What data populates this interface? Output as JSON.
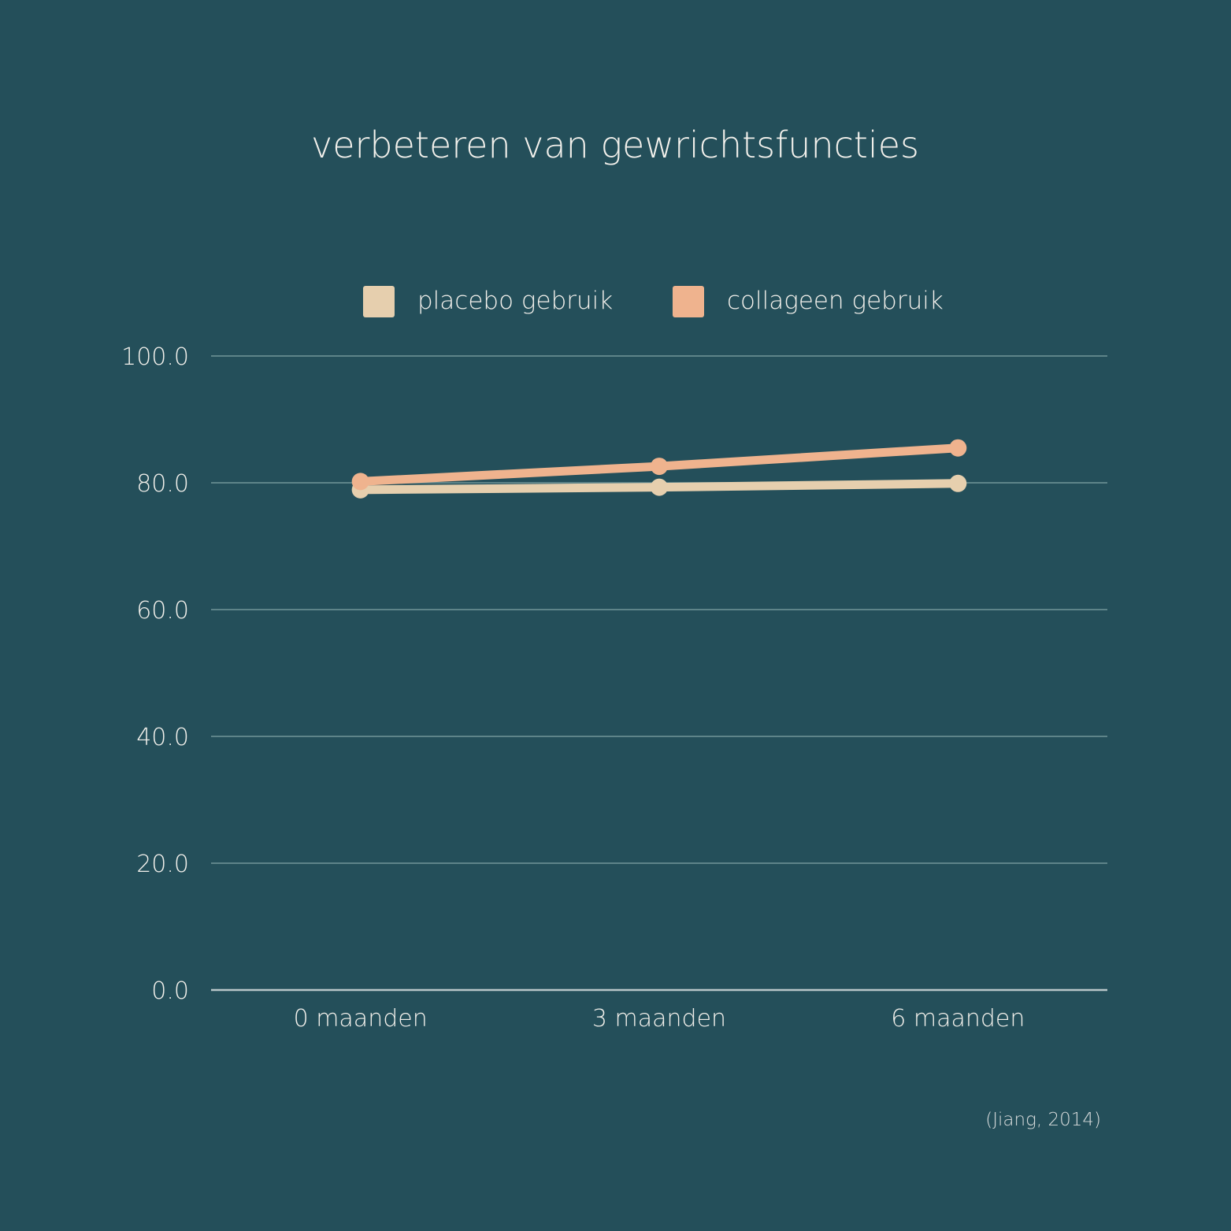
{
  "chart_data": {
    "type": "line",
    "title": "verbeteren van gewrichtsfuncties",
    "categories": [
      "0 maanden",
      "3 maanden",
      "6 maanden"
    ],
    "series": [
      {
        "name": "placebo gebruik",
        "color": "#e6cfae",
        "values": [
          78.9,
          79.3,
          79.9
        ]
      },
      {
        "name": "collageen gebruik",
        "color": "#efb38e",
        "values": [
          80.2,
          82.6,
          85.5
        ]
      }
    ],
    "yticks": [
      "0.0",
      "20.0",
      "40.0",
      "60.0",
      "80.0",
      "100.0"
    ],
    "ylim": [
      0,
      100
    ],
    "xlabel": "",
    "ylabel": "",
    "grid": true,
    "legend": "top-center",
    "source": "(Jiang, 2014)"
  }
}
